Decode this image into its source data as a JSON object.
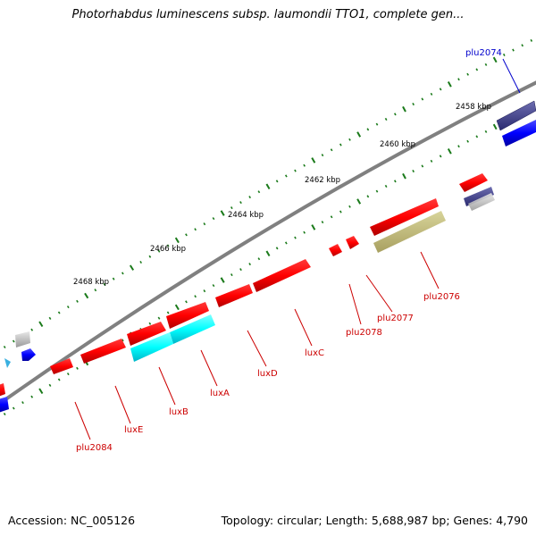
{
  "title": "Photorhabdus luminescens subsp. laumondii TTO1, complete gen...",
  "footer": {
    "accession": "Accession: NC_005126",
    "stats": "Topology: circular; Length: 5,688,987 bp; Genes: 4,790"
  },
  "colors": {
    "backbone": "#808080",
    "tick": "#1a7a1a",
    "forward_gene": "#ff0000",
    "reverse_gene": "#00ffff",
    "highlight_gene": "#0000ff",
    "label_red": "#cc0000",
    "label_blue": "#0000cc"
  },
  "ruler": {
    "unit": "kbp",
    "labels": [
      "2458 kbp",
      "2460 kbp",
      "2462 kbp",
      "2464 kbp",
      "2466 kbp",
      "2468 kbp"
    ]
  },
  "genes": [
    {
      "id": "plu2074",
      "label": "plu2074",
      "color": "#0000cc"
    },
    {
      "id": "plu2076",
      "label": "plu2076",
      "color": "#cc0000"
    },
    {
      "id": "plu2077",
      "label": "plu2077",
      "color": "#cc0000"
    },
    {
      "id": "plu2078",
      "label": "plu2078",
      "color": "#cc0000"
    },
    {
      "id": "luxC",
      "label": "luxC",
      "color": "#cc0000"
    },
    {
      "id": "luxD",
      "label": "luxD",
      "color": "#cc0000"
    },
    {
      "id": "luxA",
      "label": "luxA",
      "color": "#cc0000"
    },
    {
      "id": "luxB",
      "label": "luxB",
      "color": "#cc0000"
    },
    {
      "id": "luxE",
      "label": "luxE",
      "color": "#cc0000"
    },
    {
      "id": "plu2084",
      "label": "plu2084",
      "color": "#cc0000"
    }
  ]
}
